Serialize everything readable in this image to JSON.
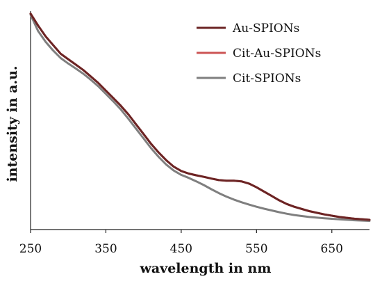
{
  "chart_data": {
    "type": "line",
    "title": "",
    "xlabel": "wavelength in nm",
    "ylabel": "intensity in a.u.",
    "xlim": [
      250,
      700
    ],
    "ylim": [
      0,
      1
    ],
    "xticks": [
      250,
      350,
      450,
      550,
      650
    ],
    "xtick_labels": [
      "250",
      "350",
      "450",
      "550",
      "650"
    ],
    "yticks_shown": false,
    "grid": false,
    "legend_position": "top-right",
    "series": [
      {
        "name": "Au-SPIONs",
        "color": "#6b2424",
        "x": [
          250,
          260,
          270,
          280,
          290,
          300,
          310,
          320,
          330,
          340,
          350,
          360,
          370,
          380,
          390,
          400,
          410,
          420,
          430,
          440,
          450,
          460,
          470,
          480,
          490,
          500,
          510,
          520,
          530,
          540,
          550,
          560,
          570,
          580,
          590,
          600,
          620,
          640,
          660,
          680,
          700
        ],
        "y": [
          0.995,
          0.94,
          0.89,
          0.85,
          0.81,
          0.785,
          0.76,
          0.735,
          0.705,
          0.675,
          0.64,
          0.605,
          0.57,
          0.53,
          0.485,
          0.44,
          0.395,
          0.355,
          0.32,
          0.29,
          0.27,
          0.258,
          0.25,
          0.243,
          0.235,
          0.228,
          0.225,
          0.225,
          0.222,
          0.212,
          0.195,
          0.175,
          0.155,
          0.135,
          0.118,
          0.105,
          0.085,
          0.07,
          0.058,
          0.05,
          0.045
        ]
      },
      {
        "name": "Cit-Au-SPIONs",
        "color": "#cc5555",
        "x": [
          250,
          260,
          270,
          280,
          290,
          300,
          310,
          320,
          330,
          340,
          350,
          360,
          370,
          380,
          390,
          400,
          410,
          420,
          430,
          440,
          450,
          460,
          470,
          480,
          490,
          500,
          510,
          520,
          530,
          540,
          550,
          560,
          570,
          580,
          590,
          600,
          620,
          640,
          660,
          680,
          700
        ],
        "y": [
          0.995,
          0.94,
          0.89,
          0.85,
          0.81,
          0.785,
          0.76,
          0.735,
          0.705,
          0.675,
          0.64,
          0.605,
          0.57,
          0.53,
          0.485,
          0.44,
          0.395,
          0.355,
          0.32,
          0.29,
          0.27,
          0.258,
          0.25,
          0.243,
          0.235,
          0.228,
          0.225,
          0.225,
          0.222,
          0.212,
          0.195,
          0.175,
          0.155,
          0.135,
          0.118,
          0.105,
          0.085,
          0.07,
          0.058,
          0.05,
          0.045
        ]
      },
      {
        "name": "Cit-SPIONs",
        "color": "#7f7f7f",
        "x": [
          250,
          260,
          270,
          280,
          290,
          300,
          310,
          320,
          330,
          340,
          350,
          360,
          370,
          380,
          390,
          400,
          410,
          420,
          430,
          440,
          450,
          460,
          470,
          480,
          490,
          500,
          510,
          520,
          530,
          540,
          550,
          560,
          570,
          580,
          590,
          600,
          620,
          640,
          660,
          680,
          700
        ],
        "y": [
          0.99,
          0.915,
          0.865,
          0.825,
          0.79,
          0.765,
          0.742,
          0.718,
          0.69,
          0.66,
          0.625,
          0.59,
          0.553,
          0.51,
          0.465,
          0.42,
          0.375,
          0.335,
          0.3,
          0.272,
          0.252,
          0.238,
          0.222,
          0.205,
          0.186,
          0.168,
          0.152,
          0.138,
          0.126,
          0.115,
          0.105,
          0.096,
          0.088,
          0.08,
          0.073,
          0.067,
          0.058,
          0.052,
          0.047,
          0.043,
          0.04
        ]
      }
    ]
  }
}
